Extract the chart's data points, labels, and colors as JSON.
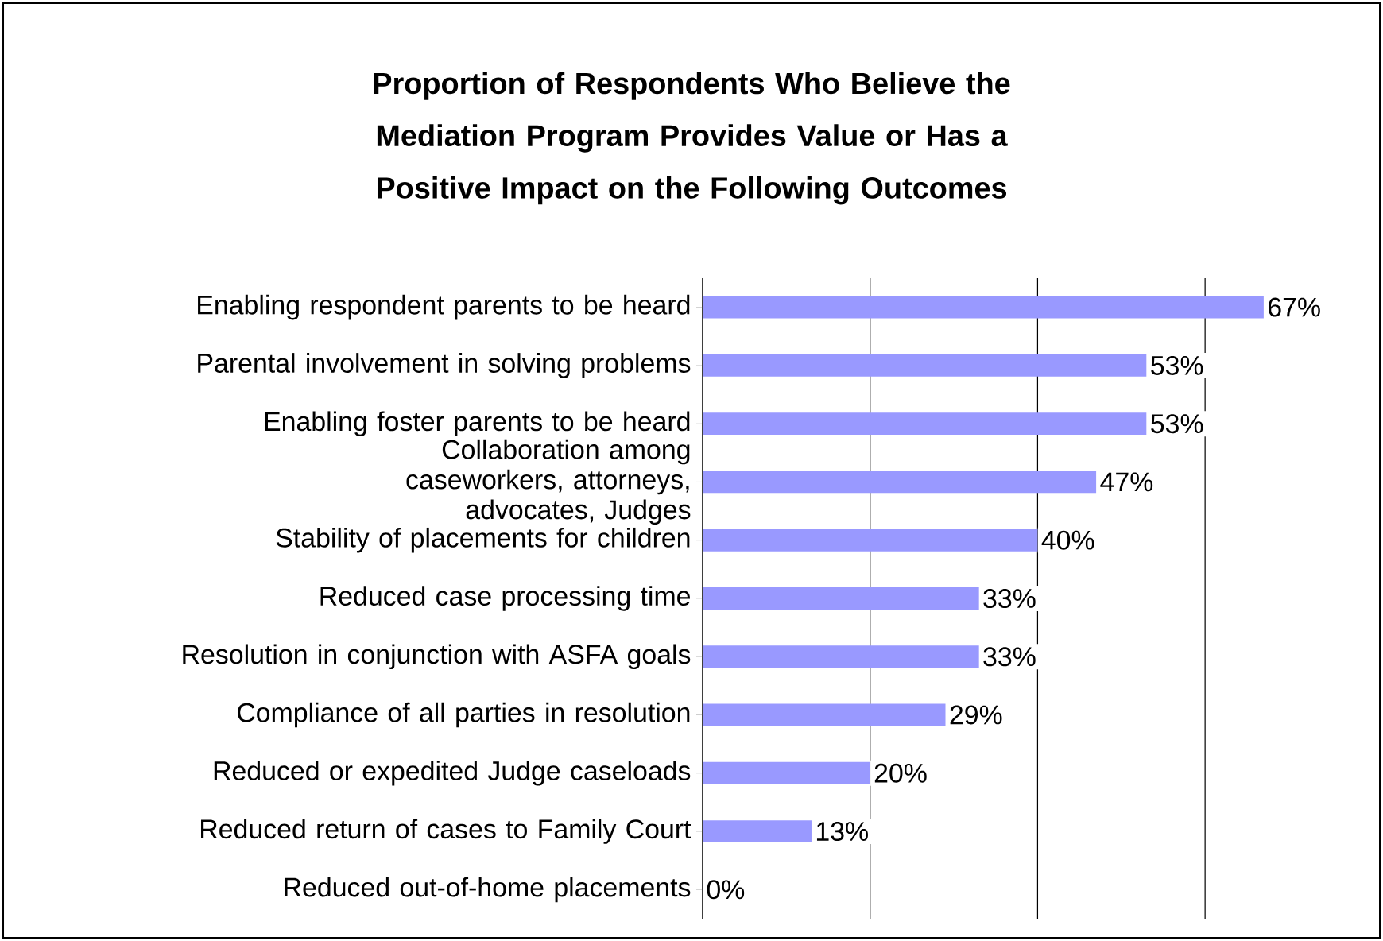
{
  "chart_data": {
    "type": "bar",
    "orientation": "horizontal",
    "title": "Proportion of Respondents Who Believe the Mediation Program Provides Value or Has a  Positive Impact on the Following Outcomes",
    "categories": [
      "Enabling respondent parents to be heard",
      "Parental involvement in solving problems",
      "Enabling foster parents to be heard",
      "Collaboration among caseworkers, attorneys, advocates, Judges",
      "Stability of placements for children",
      "Reduced case processing time",
      "Resolution in conjunction with ASFA goals",
      "Compliance of all parties in resolution",
      "Reduced or expedited Judge caseloads",
      "Reduced return of cases to Family Court",
      "Reduced out-of-home placements"
    ],
    "values": [
      67,
      53,
      53,
      47,
      40,
      33,
      33,
      29,
      20,
      13,
      0
    ],
    "value_labels": [
      "67%",
      "53%",
      "53%",
      "47%",
      "40%",
      "33%",
      "33%",
      "29%",
      "20%",
      "13%",
      "0%"
    ],
    "color": "#9999ff",
    "grid": "x"
  }
}
